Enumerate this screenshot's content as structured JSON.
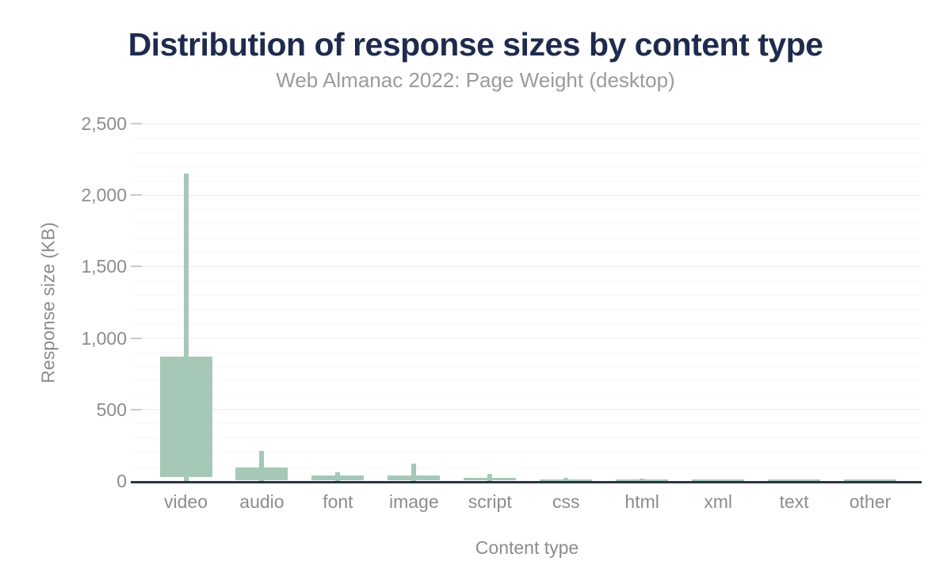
{
  "header": {
    "title": "Distribution of response sizes by content type",
    "subtitle": "Web Almanac 2022: Page Weight (desktop)"
  },
  "chart_data": {
    "type": "boxplot",
    "title": "Distribution of response sizes by content type",
    "subtitle": "Web Almanac 2022: Page Weight (desktop)",
    "xlabel": "Content type",
    "ylabel": "Response size (KB)",
    "ylim": [
      0,
      2500
    ],
    "ytick_interval": 500,
    "minor_grid_interval": 100,
    "grid": true,
    "legend": false,
    "yticks": [
      {
        "value": 0,
        "label": "0"
      },
      {
        "value": 500,
        "label": "500"
      },
      {
        "value": 1000,
        "label": "1,000"
      },
      {
        "value": 1500,
        "label": "1,500"
      },
      {
        "value": 2000,
        "label": "2,000"
      },
      {
        "value": 2500,
        "label": "2,500"
      }
    ],
    "categories": [
      "video",
      "audio",
      "font",
      "image",
      "script",
      "css",
      "html",
      "xml",
      "text",
      "other"
    ],
    "series": [
      {
        "name": "video",
        "p10": 0,
        "p25": 30,
        "p75": 870,
        "p90": 2150
      },
      {
        "name": "audio",
        "p10": 0,
        "p25": 5,
        "p75": 95,
        "p90": 213
      },
      {
        "name": "font",
        "p10": 0,
        "p25": 6,
        "p75": 40,
        "p90": 64
      },
      {
        "name": "image",
        "p10": 0,
        "p25": 4,
        "p75": 41,
        "p90": 123
      },
      {
        "name": "script",
        "p10": 0,
        "p25": 3,
        "p75": 23,
        "p90": 52
      },
      {
        "name": "css",
        "p10": 0,
        "p25": 2,
        "p75": 12,
        "p90": 23
      },
      {
        "name": "html",
        "p10": 0,
        "p25": 1,
        "p75": 7,
        "p90": 19
      },
      {
        "name": "xml",
        "p10": 0,
        "p25": 0,
        "p75": 5,
        "p90": 9
      },
      {
        "name": "text",
        "p10": 0,
        "p25": 0,
        "p75": 5,
        "p90": 7
      },
      {
        "name": "other",
        "p10": 0,
        "p25": 0,
        "p75": 5,
        "p90": 7
      }
    ],
    "box_semantics": "box = 25th-75th percentile, whisker = 10th-90th percentile, values in KB"
  },
  "colors": {
    "box_fill": "#a5c8b7",
    "axis_line": "#2b3441",
    "title": "#1f2b4d",
    "subtitle": "#9b9b9b",
    "tick_text": "#8c8c8c",
    "grid_major": "#ececec",
    "grid_minor": "#f7f7f7",
    "background": "#ffffff"
  }
}
